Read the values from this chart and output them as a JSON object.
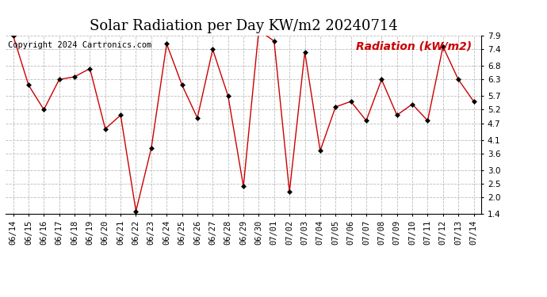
{
  "title": "Solar Radiation per Day KW/m2 20240714",
  "copyright_text": "Copyright 2024 Cartronics.com",
  "legend_label": "Radiation (kW/m2)",
  "dates": [
    "06/14",
    "06/15",
    "06/16",
    "06/17",
    "06/18",
    "06/19",
    "06/20",
    "06/21",
    "06/22",
    "06/23",
    "06/24",
    "06/25",
    "06/26",
    "06/27",
    "06/28",
    "06/29",
    "06/30",
    "07/01",
    "07/02",
    "07/03",
    "07/04",
    "07/05",
    "07/06",
    "07/07",
    "07/08",
    "07/09",
    "07/10",
    "07/11",
    "07/12",
    "07/13",
    "07/14"
  ],
  "values": [
    7.9,
    6.1,
    5.2,
    6.3,
    6.4,
    6.7,
    4.5,
    5.0,
    1.5,
    3.8,
    7.6,
    6.1,
    4.9,
    7.4,
    5.7,
    2.4,
    8.1,
    7.7,
    2.2,
    7.3,
    3.7,
    5.3,
    5.5,
    4.8,
    6.3,
    5.0,
    5.4,
    4.8,
    7.5,
    6.3,
    5.5
  ],
  "line_color": "#cc0000",
  "marker_color": "#000000",
  "bg_color": "#ffffff",
  "grid_color": "#bbbbbb",
  "ylim": [
    1.4,
    7.9
  ],
  "yticks": [
    1.4,
    2.0,
    2.5,
    3.0,
    3.6,
    4.1,
    4.7,
    5.2,
    5.7,
    6.3,
    6.8,
    7.4,
    7.9
  ],
  "title_fontsize": 13,
  "copyright_fontsize": 7.5,
  "legend_fontsize": 10,
  "tick_fontsize": 7.5
}
